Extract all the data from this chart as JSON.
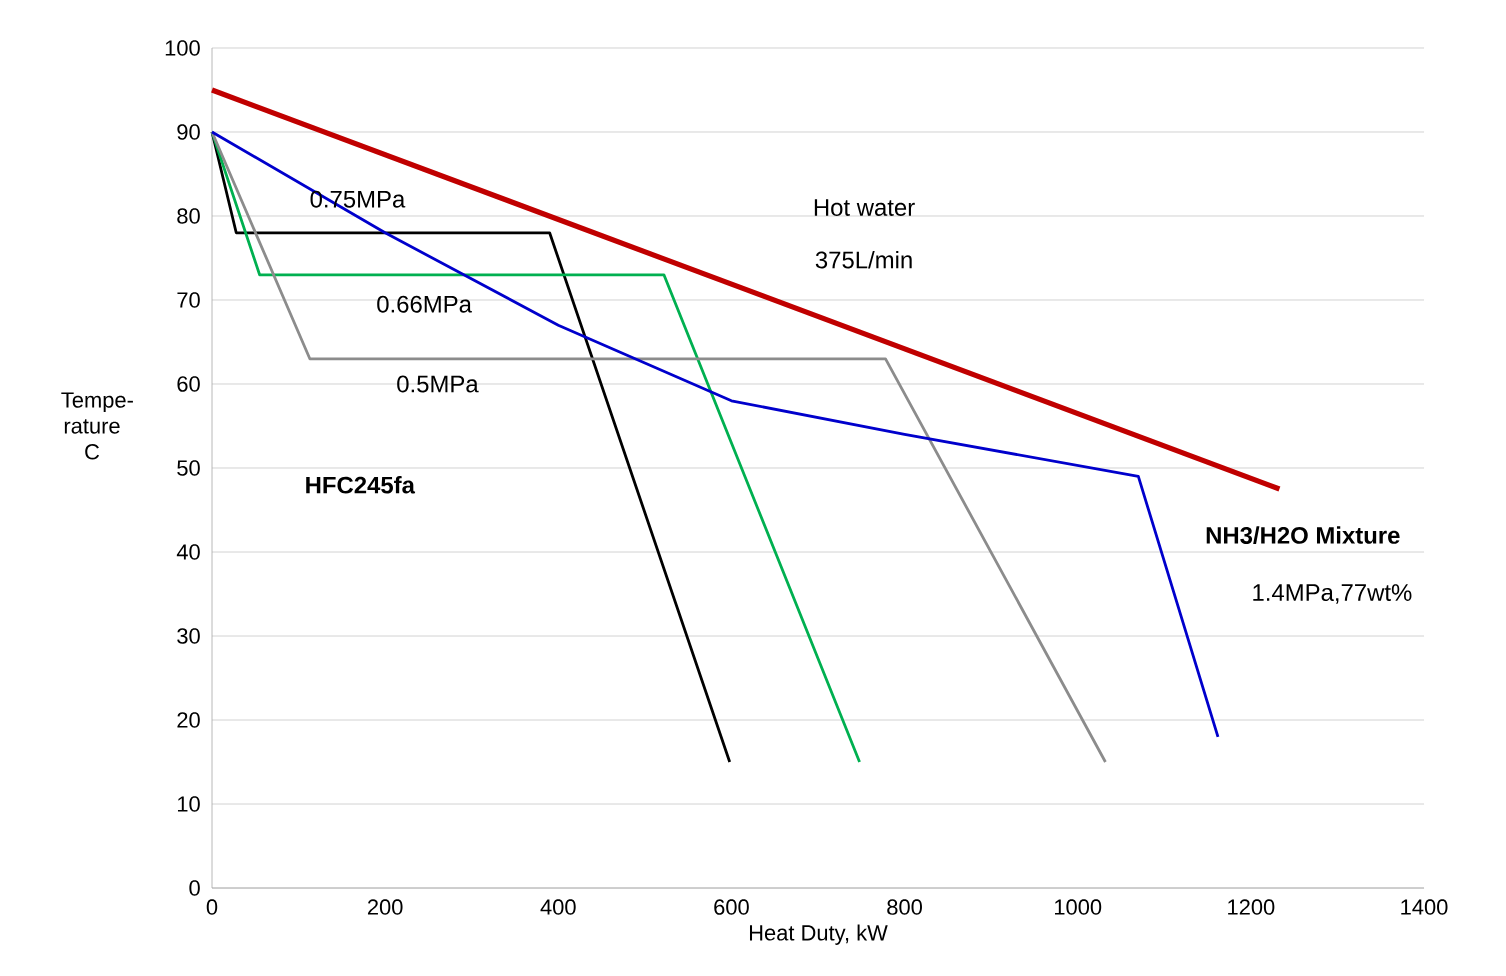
{
  "chart_data": {
    "type": "line",
    "xlabel": "Heat Duty, kW",
    "ylabel": "Tempe-rature C",
    "xlim": [
      0,
      1400
    ],
    "ylim": [
      0,
      100
    ],
    "xticks": [
      0,
      200,
      400,
      600,
      800,
      1000,
      1200,
      1400
    ],
    "yticks": [
      0,
      10,
      20,
      30,
      40,
      50,
      60,
      70,
      80,
      90,
      100
    ],
    "grid": "y",
    "series": [
      {
        "color": "#c00000",
        "x": [
          0,
          1233
        ],
        "values": [
          95,
          47.5
        ]
      },
      {
        "color": "#000000",
        "x": [
          0,
          28,
          390,
          598
        ],
        "values": [
          90,
          78,
          78,
          15
        ]
      },
      {
        "color": "#00b050",
        "x": [
          0,
          55,
          522,
          748
        ],
        "values": [
          90,
          73,
          73,
          15
        ]
      },
      {
        "color": "#8c8c8c",
        "x": [
          0,
          113,
          778,
          1032
        ],
        "values": [
          90,
          63,
          63,
          15
        ]
      },
      {
        "color": "#0000cc",
        "x": [
          0,
          200,
          400,
          600,
          800,
          1070,
          1162
        ],
        "values": [
          90,
          78,
          67,
          58,
          54,
          49,
          18
        ]
      }
    ],
    "annotations": [
      "0.75MPa",
      "0.66MPa",
      "0.5MPa",
      "Hot water",
      "375L/min",
      "**HFC245fa**",
      "**NH3/H2O Mixture**",
      "1.4MPa,77wt%"
    ]
  }
}
